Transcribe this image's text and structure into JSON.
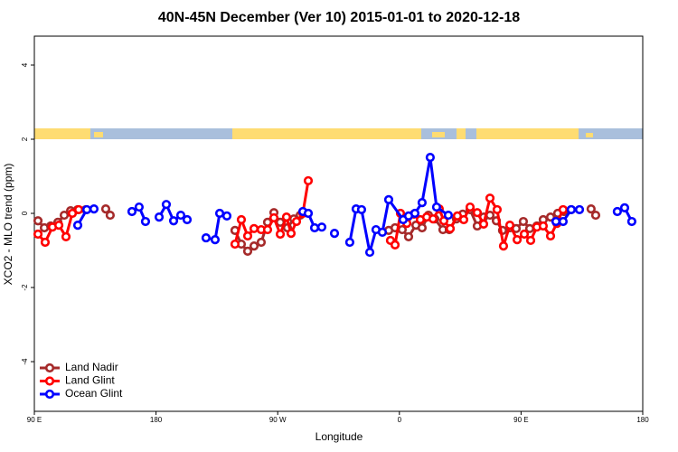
{
  "chart_data": {
    "type": "line",
    "title": "40N-45N December (Ver 10)   2015-01-01 to 2020-12-18",
    "x_label": "Longitude",
    "y_label": "XCO2 - MLO trend (ppm)",
    "xlim": [
      90,
      540
    ],
    "xticks": [
      {
        "value": 90,
        "label": "90 E"
      },
      {
        "value": 180,
        "label": "180"
      },
      {
        "value": 270,
        "label": "90 W"
      },
      {
        "value": 360,
        "label": "0"
      },
      {
        "value": 450,
        "label": "90 E"
      },
      {
        "value": 540,
        "label": "180"
      }
    ],
    "ylim": [
      -5.34,
      4.78
    ],
    "yticks": [
      -4,
      -2,
      0,
      2,
      4
    ],
    "legend": "bottom-left",
    "series": [
      {
        "name": "Land Nadir",
        "color": "#a52a2a",
        "x": [
          92.7,
          97.4,
          102.1,
          107.4,
          112.1,
          116.8,
          122.1,
          128.1,
          null,
          142.8,
          146.1,
          null,
          238.4,
          243.1,
          247.8,
          252.5,
          257.8,
          262.5,
          267.2,
          271.9,
          277.2,
          281.9,
          286.6,
          null,
          352.1,
          356.8,
          362.1,
          366.8,
          372.2,
          376.8,
          381.5,
          386.2,
          392.2,
          396.9,
          402.2,
          406.9,
          412.3,
          417.6,
          422.3,
          427.0,
          431.7,
          436.3,
          441.7,
          446.4,
          451.7,
          456.4,
          461.7,
          466.4,
          471.8,
          477.1,
          481.8,
          487.1,
          null,
          501.8,
          505.2
        ],
        "values": [
          -0.2,
          -0.39,
          -0.34,
          -0.24,
          -0.05,
          0.07,
          0.1,
          0.1,
          null,
          0.12,
          -0.05,
          null,
          -0.46,
          -0.83,
          -1.02,
          -0.88,
          -0.78,
          -0.24,
          0.02,
          -0.24,
          -0.39,
          -0.15,
          -0.05,
          null,
          -0.46,
          -0.39,
          -0.44,
          -0.63,
          -0.32,
          -0.39,
          -0.05,
          -0.15,
          -0.44,
          -0.44,
          -0.15,
          -0.02,
          0.1,
          -0.34,
          -0.1,
          -0.05,
          -0.2,
          -0.46,
          -0.39,
          -0.41,
          -0.22,
          -0.41,
          -0.34,
          -0.17,
          -0.1,
          0,
          0.05,
          0.1,
          null,
          0.12,
          -0.05
        ]
      },
      {
        "name": "Land Glint",
        "color": "#ff0000",
        "x": [
          92.7,
          98.0,
          103.4,
          108.1,
          113.4,
          118.1,
          122.8,
          null,
          238.4,
          243.1,
          247.8,
          252.5,
          257.8,
          262.5,
          267.2,
          271.9,
          276.5,
          279.9,
          283.9,
          288.6,
          292.6,
          null,
          353.4,
          356.8,
          360.8,
          365.5,
          370.8,
          375.5,
          380.2,
          384.9,
          389.5,
          392.9,
          397.6,
          402.9,
          407.6,
          412.3,
          417.6,
          422.3,
          427.0,
          432.3,
          437.0,
          441.7,
          447.1,
          452.4,
          457.1,
          461.7,
          466.4,
          471.8,
          476.5,
          481.1
        ],
        "values": [
          -0.56,
          -0.78,
          -0.37,
          -0.32,
          -0.63,
          0,
          0.1,
          null,
          -0.83,
          -0.17,
          -0.61,
          -0.41,
          -0.44,
          -0.44,
          -0.12,
          -0.56,
          -0.1,
          -0.54,
          -0.22,
          0,
          0.88,
          null,
          -0.73,
          -0.85,
          0,
          -0.27,
          -0.02,
          -0.17,
          -0.1,
          -0.15,
          0.12,
          -0.2,
          -0.41,
          -0.07,
          -0.17,
          0.17,
          0.02,
          -0.29,
          0.41,
          0.1,
          -0.88,
          -0.32,
          -0.71,
          -0.56,
          -0.73,
          -0.37,
          -0.34,
          -0.61,
          -0.27,
          0.1
        ]
      },
      {
        "name": "Ocean Glint",
        "color": "#0000ff",
        "x": [
          122.1,
          128.8,
          134.1,
          null,
          162.2,
          167.5,
          172.2,
          null,
          182.3,
          187.6,
          193.0,
          198.3,
          203.0,
          null,
          217.0,
          223.7,
          227.1,
          232.4,
          null,
          288.6,
          292.6,
          297.3,
          302.6,
          null,
          312.0,
          null,
          323.3,
          328.0,
          332.0,
          338.1,
          342.7,
          347.4,
          352.1,
          362.8,
          366.8,
          371.5,
          376.8,
          382.8,
          387.5,
          396.2,
          null,
          475.8,
          481.1,
          487.1,
          493.2,
          null,
          521.2,
          526.6,
          531.9
        ],
        "values": [
          -0.32,
          0.1,
          0.12,
          null,
          0.05,
          0.17,
          -0.22,
          null,
          -0.1,
          0.24,
          -0.2,
          -0.05,
          -0.17,
          null,
          -0.66,
          -0.71,
          0,
          -0.07,
          null,
          0.05,
          0,
          -0.39,
          -0.37,
          null,
          -0.54,
          null,
          -0.78,
          0.12,
          0.1,
          -1.05,
          -0.44,
          -0.51,
          0.37,
          -0.17,
          -0.07,
          0,
          0.29,
          1.51,
          0.17,
          -0.05,
          null,
          -0.22,
          -0.22,
          0.1,
          0.1,
          null,
          0.05,
          0.15,
          -0.22
        ]
      }
    ]
  }
}
